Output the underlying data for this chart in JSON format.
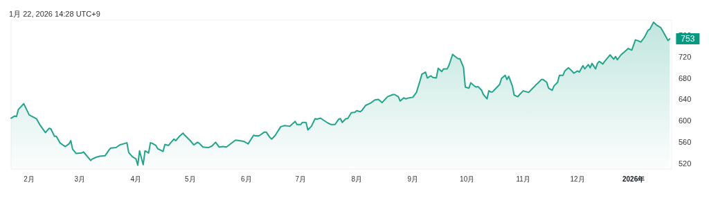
{
  "chart_data": {
    "type": "area",
    "title": "1月 22, 2026 14:28 UTC+9",
    "x": [
      "2025-01-22",
      "2025-01-24",
      "2025-01-25",
      "2025-01-26",
      "2025-01-29",
      "2025-02-01",
      "2025-02-05",
      "2025-02-07",
      "2025-02-10",
      "2025-02-12",
      "2025-02-13",
      "2025-02-15",
      "2025-02-16",
      "2025-02-18",
      "2025-02-20",
      "2025-02-21",
      "2025-02-23",
      "2025-02-24",
      "2025-02-25",
      "2025-02-27",
      "2025-03-02",
      "2025-03-03",
      "2025-03-07",
      "2025-03-08",
      "2025-03-10",
      "2025-03-12",
      "2025-03-15",
      "2025-03-17",
      "2025-03-18",
      "2025-03-21",
      "2025-03-23",
      "2025-03-27",
      "2025-03-28",
      "2025-03-30",
      "2025-04-01",
      "2025-04-02",
      "2025-04-03",
      "2025-04-05",
      "2025-04-06",
      "2025-04-08",
      "2025-04-09",
      "2025-04-10",
      "2025-04-12",
      "2025-04-13",
      "2025-04-16",
      "2025-04-17",
      "2025-04-19",
      "2025-04-22",
      "2025-04-23",
      "2025-04-25",
      "2025-04-27",
      "2025-04-28",
      "2025-05-01",
      "2025-05-03",
      "2025-05-05",
      "2025-05-06",
      "2025-05-08",
      "2025-05-11",
      "2025-05-13",
      "2025-05-15",
      "2025-05-17",
      "2025-05-19",
      "2025-05-21",
      "2025-05-26",
      "2025-05-30",
      "2025-05-31",
      "2025-06-02",
      "2025-06-05",
      "2025-06-06",
      "2025-06-08",
      "2025-06-11",
      "2025-06-12",
      "2025-06-14",
      "2025-06-15",
      "2025-06-17",
      "2025-06-20",
      "2025-06-22",
      "2025-06-25",
      "2025-06-28",
      "2025-06-29",
      "2025-07-01",
      "2025-07-02",
      "2025-07-04",
      "2025-07-05",
      "2025-07-07",
      "2025-07-09",
      "2025-07-10",
      "2025-07-12",
      "2025-07-16",
      "2025-07-18",
      "2025-07-20",
      "2025-07-22",
      "2025-07-23",
      "2025-07-24",
      "2025-07-26",
      "2025-07-27",
      "2025-07-29",
      "2025-07-31",
      "2025-08-01",
      "2025-08-03",
      "2025-08-04",
      "2025-08-06",
      "2025-08-08",
      "2025-08-09",
      "2025-08-11",
      "2025-08-13",
      "2025-08-15",
      "2025-08-18",
      "2025-08-21",
      "2025-08-22",
      "2025-08-24",
      "2025-08-25",
      "2025-08-27",
      "2025-08-28",
      "2025-08-30",
      "2025-09-01",
      "2025-09-03",
      "2025-09-05",
      "2025-09-06",
      "2025-09-08",
      "2025-09-09",
      "2025-09-11",
      "2025-09-12",
      "2025-09-14",
      "2025-09-15",
      "2025-09-17",
      "2025-09-18",
      "2025-09-20",
      "2025-09-21",
      "2025-09-23",
      "2025-09-24",
      "2025-09-26",
      "2025-09-27",
      "2025-09-29",
      "2025-09-30",
      "2025-10-02",
      "2025-10-03",
      "2025-10-05",
      "2025-10-06",
      "2025-10-07",
      "2025-10-09",
      "2025-10-10",
      "2025-10-12",
      "2025-10-13",
      "2025-10-14",
      "2025-10-15",
      "2025-10-17",
      "2025-10-19",
      "2025-10-20",
      "2025-10-22",
      "2025-10-23",
      "2025-10-24",
      "2025-10-26",
      "2025-10-27",
      "2025-10-29",
      "2025-10-30",
      "2025-11-01",
      "2025-11-03",
      "2025-11-04",
      "2025-11-06",
      "2025-11-08",
      "2025-11-09",
      "2025-11-11",
      "2025-11-12",
      "2025-11-14",
      "2025-11-15",
      "2025-11-17",
      "2025-11-18",
      "2025-11-20",
      "2025-11-21",
      "2025-11-23",
      "2025-11-24",
      "2025-11-26",
      "2025-11-27",
      "2025-11-29",
      "2025-12-01",
      "2025-12-02",
      "2025-12-04",
      "2025-12-05",
      "2025-12-07",
      "2025-12-08",
      "2025-12-09",
      "2025-12-11",
      "2025-12-12",
      "2025-12-13",
      "2025-12-15",
      "2025-12-16",
      "2025-12-18",
      "2025-12-19",
      "2025-12-21",
      "2025-12-22",
      "2025-12-23",
      "2025-12-25",
      "2025-12-27",
      "2025-12-29",
      "2025-12-31",
      "2026-01-02",
      "2026-01-03",
      "2026-01-05",
      "2026-01-07",
      "2026-01-09",
      "2026-01-10",
      "2026-01-12",
      "2026-01-14",
      "2026-01-16",
      "2026-01-18",
      "2026-01-20",
      "2026-01-21"
    ],
    "series": [
      {
        "color": "#22a38a",
        "values": [
          605,
          609,
          608,
          621,
          632,
          611,
          604,
          592,
          578,
          586,
          585,
          571,
          571,
          559,
          554,
          552,
          557,
          563,
          547,
          539,
          540,
          542,
          526,
          529,
          532,
          534,
          535,
          545,
          549,
          550,
          555,
          559,
          541,
          533,
          529,
          517,
          544,
          518,
          544,
          540,
          559,
          558,
          554,
          548,
          543,
          556,
          554,
          566,
          563,
          571,
          577,
          573,
          563,
          555,
          560,
          558,
          551,
          550,
          553,
          560,
          551,
          552,
          551,
          564,
          562,
          561,
          557,
          573,
          572,
          572,
          579,
          579,
          569,
          566,
          573,
          589,
          591,
          590,
          599,
          593,
          593,
          597,
          597,
          583,
          590,
          604,
          603,
          605,
          596,
          593,
          593,
          603,
          604,
          597,
          604,
          604,
          615,
          616,
          619,
          617,
          620,
          629,
          632,
          634,
          639,
          640,
          634,
          645,
          649,
          649,
          645,
          637,
          643,
          641,
          643,
          644,
          653,
          675,
          687,
          691,
          680,
          684,
          681,
          680,
          698,
          692,
          697,
          697,
          704,
          724,
          721,
          716,
          716,
          700,
          663,
          661,
          671,
          665,
          663,
          664,
          657,
          649,
          641,
          656,
          654,
          654,
          661,
          668,
          679,
          685,
          677,
          683,
          665,
          648,
          645,
          649,
          656,
          654,
          653,
          660,
          667,
          670,
          677,
          677,
          672,
          661,
          657,
          665,
          672,
          685,
          685,
          693,
          699,
          696,
          689,
          693,
          691,
          703,
          697,
          705,
          699,
          707,
          697,
          707,
          711,
          706,
          711,
          719,
          723,
          715,
          720,
          714,
          723,
          729,
          735,
          732,
          751,
          750,
          747,
          756,
          769,
          771,
          784,
          778,
          774,
          762,
          750,
          753
        ]
      }
    ],
    "xlim": [
      "2025-01-22",
      "2026-01-22"
    ],
    "xticks": [
      {
        "value": "2025-02-01",
        "label": "2月"
      },
      {
        "value": "2025-03-01",
        "label": "3月"
      },
      {
        "value": "2025-04-01",
        "label": "4月"
      },
      {
        "value": "2025-05-01",
        "label": "5月"
      },
      {
        "value": "2025-06-01",
        "label": "6月"
      },
      {
        "value": "2025-07-01",
        "label": "7月"
      },
      {
        "value": "2025-08-01",
        "label": "8月"
      },
      {
        "value": "2025-09-01",
        "label": "9月"
      },
      {
        "value": "2025-10-01",
        "label": "10月"
      },
      {
        "value": "2025-11-01",
        "label": "11月"
      },
      {
        "value": "2025-12-01",
        "label": "12月"
      },
      {
        "value": "2026-01-01",
        "label": "2026年"
      }
    ],
    "ylim": [
      510,
      788
    ],
    "yticks": [
      520,
      560,
      600,
      640,
      680,
      720,
      760
    ],
    "annotations": [
      {
        "text": "753",
        "x": "2026-01-21",
        "y": 753
      }
    ],
    "grid": false
  }
}
